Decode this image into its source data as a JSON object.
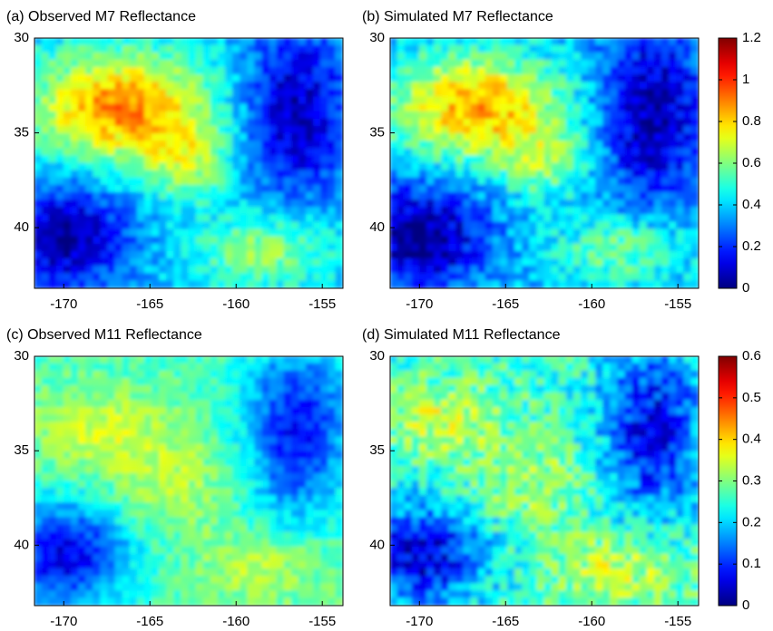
{
  "chart_data": [
    {
      "type": "heatmap",
      "title": "(a)  Observed M7 Reflectance",
      "xlim": [
        -171.7,
        -153.8
      ],
      "xticks": [
        -170,
        -165,
        -160,
        -155
      ],
      "ylim": [
        30,
        43.2
      ],
      "yticks": [
        30,
        35,
        40
      ],
      "y_inverted": true,
      "colormap": "jet"
    },
    {
      "type": "heatmap",
      "title": "(b)  Simulated M7 Reflectance",
      "xlim": [
        -171.7,
        -153.8
      ],
      "xticks": [
        -170,
        -165,
        -160,
        -155
      ],
      "ylim": [
        30,
        43.2
      ],
      "yticks": [
        30,
        35,
        40
      ],
      "y_inverted": true,
      "colormap": "jet",
      "clim": [
        0,
        1.2
      ],
      "cticks": [
        0,
        0.2,
        0.4,
        0.6,
        0.8,
        1,
        1.2
      ]
    },
    {
      "type": "heatmap",
      "title": "(c)  Observed M11 Reflectance",
      "xlim": [
        -171.7,
        -153.8
      ],
      "xticks": [
        -170,
        -165,
        -160,
        -155
      ],
      "ylim": [
        30,
        43.2
      ],
      "yticks": [
        30,
        35,
        40
      ],
      "y_inverted": true,
      "colormap": "jet"
    },
    {
      "type": "heatmap",
      "title": "(d)  Simulated M11 Reflectance",
      "xlim": [
        -171.7,
        -153.8
      ],
      "xticks": [
        -170,
        -165,
        -160,
        -155
      ],
      "ylim": [
        30,
        43.2
      ],
      "yticks": [
        30,
        35,
        40
      ],
      "y_inverted": true,
      "colormap": "jet",
      "clim": [
        0,
        0.6
      ],
      "cticks": [
        0,
        0.1,
        0.2,
        0.3,
        0.4,
        0.5,
        0.6
      ]
    }
  ]
}
